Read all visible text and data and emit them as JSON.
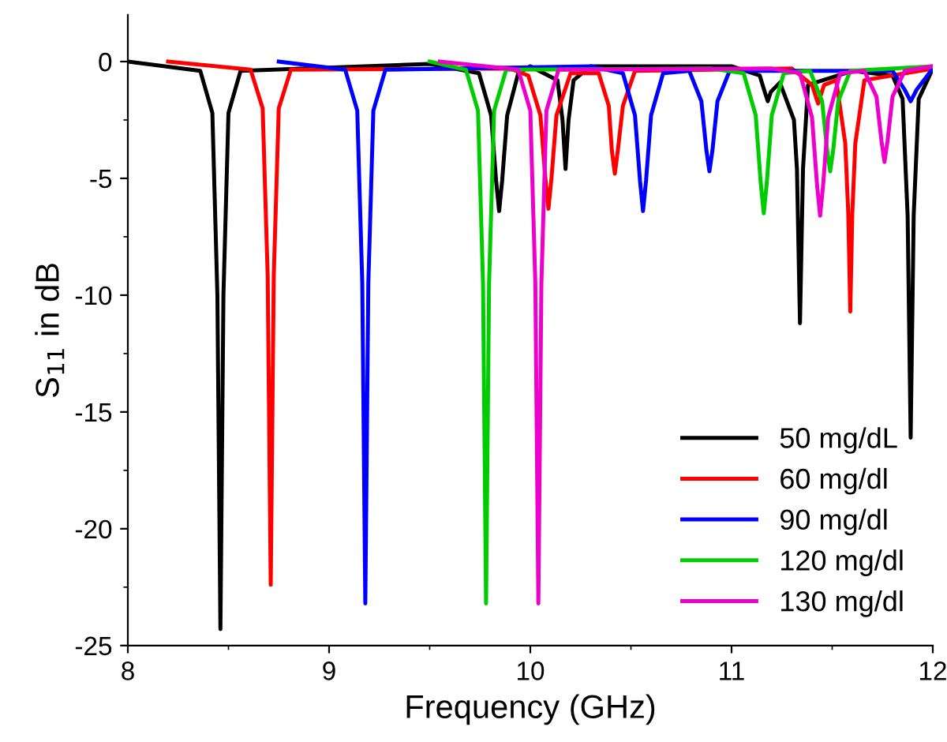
{
  "chart_data": {
    "type": "line",
    "xlabel": "Frequency (GHz)",
    "ylabel": "S$_{11}$ in dB",
    "xlim": [
      8,
      12
    ],
    "xticks": [
      8,
      9,
      10,
      11,
      12
    ],
    "ylim": [
      -25,
      2
    ],
    "yticks": [
      -25,
      -20,
      -15,
      -10,
      -5,
      0
    ],
    "grid": false,
    "legend": "bottom right",
    "marker": "none",
    "line_style": "solid",
    "series": [
      {
        "name": "50 mg/dL",
        "color": "#000000",
        "x": [
          8.0,
          8.36,
          8.42,
          8.445,
          8.46,
          8.475,
          8.5,
          8.56,
          9.5,
          9.745,
          9.805,
          9.83,
          9.845,
          9.86,
          9.885,
          9.94,
          10.0,
          10.135,
          10.16,
          10.175,
          10.19,
          10.215,
          10.3,
          11.0,
          11.14,
          11.165,
          11.18,
          11.195,
          11.24,
          11.31,
          11.325,
          11.34,
          11.355,
          11.38,
          11.6,
          11.8,
          11.85,
          11.875,
          11.89,
          11.905,
          11.93,
          12.0
        ],
        "values": [
          0,
          -0.4,
          -2.2,
          -10.0,
          -24.3,
          -10.0,
          -2.2,
          -0.4,
          -0.1,
          -0.5,
          -2.3,
          -5.1,
          -6.4,
          -5.1,
          -2.3,
          -0.5,
          -0.2,
          -0.8,
          -2.5,
          -4.6,
          -2.5,
          -0.8,
          -0.2,
          -0.2,
          -0.6,
          -1.3,
          -1.7,
          -1.3,
          -0.9,
          -2.5,
          -4.6,
          -11.2,
          -4.6,
          -1.0,
          -0.4,
          -0.6,
          -1.6,
          -6.6,
          -16.1,
          -6.6,
          -1.6,
          -0.3
        ]
      },
      {
        "name": "60 mg/dl",
        "color": "#ff0000",
        "x": [
          8.2,
          8.61,
          8.67,
          8.695,
          8.71,
          8.725,
          8.75,
          8.81,
          9.9,
          9.99,
          10.05,
          10.075,
          10.09,
          10.105,
          10.13,
          10.2,
          10.34,
          10.39,
          10.405,
          10.42,
          10.435,
          10.46,
          10.52,
          11.3,
          11.4,
          11.43,
          11.46,
          11.52,
          11.565,
          11.58,
          11.59,
          11.6,
          11.615,
          11.66,
          12.0
        ],
        "values": [
          0,
          -0.35,
          -2.0,
          -9.2,
          -22.4,
          -9.2,
          -2.0,
          -0.35,
          -0.3,
          -0.6,
          -2.3,
          -5.0,
          -6.3,
          -5.0,
          -2.3,
          -0.5,
          -0.5,
          -1.9,
          -3.8,
          -4.8,
          -3.8,
          -1.9,
          -0.4,
          -0.3,
          -1.0,
          -1.8,
          -1.0,
          -0.8,
          -3.5,
          -6.5,
          -10.7,
          -6.5,
          -3.5,
          -0.8,
          -0.3
        ]
      },
      {
        "name": "90 mg/dl",
        "color": "#0000ff",
        "x": [
          8.75,
          9.08,
          9.14,
          9.165,
          9.18,
          9.195,
          9.22,
          9.28,
          10.3,
          10.46,
          10.52,
          10.545,
          10.56,
          10.575,
          10.6,
          10.66,
          10.79,
          10.85,
          10.875,
          10.89,
          10.905,
          10.93,
          10.99,
          11.8,
          11.86,
          11.89,
          11.92,
          12.0
        ],
        "values": [
          0,
          -0.35,
          -2.1,
          -9.5,
          -23.2,
          -9.5,
          -2.1,
          -0.35,
          -0.2,
          -0.5,
          -2.3,
          -5.1,
          -6.4,
          -5.1,
          -2.3,
          -0.5,
          -0.4,
          -1.7,
          -3.8,
          -4.7,
          -3.8,
          -1.7,
          -0.4,
          -0.4,
          -1.2,
          -1.7,
          -1.2,
          -0.3
        ]
      },
      {
        "name": "120 mg/dl",
        "color": "#00cc00",
        "x": [
          9.5,
          9.68,
          9.74,
          9.765,
          9.78,
          9.795,
          9.82,
          9.88,
          10.9,
          11.06,
          11.12,
          11.145,
          11.16,
          11.175,
          11.2,
          11.26,
          11.39,
          11.45,
          11.475,
          11.49,
          11.505,
          11.53,
          11.59,
          12.0
        ],
        "values": [
          0,
          -0.35,
          -2.1,
          -9.5,
          -23.2,
          -9.5,
          -2.1,
          -0.35,
          -0.3,
          -0.5,
          -2.3,
          -5.2,
          -6.5,
          -5.2,
          -2.3,
          -0.5,
          -0.4,
          -1.7,
          -3.8,
          -4.7,
          -3.8,
          -1.7,
          -0.4,
          -0.2
        ]
      },
      {
        "name": "130 mg/dl",
        "color": "#ee00cc",
        "x": [
          9.55,
          9.94,
          10.0,
          10.025,
          10.04,
          10.055,
          10.08,
          10.14,
          11.2,
          11.34,
          11.4,
          11.425,
          11.44,
          11.455,
          11.48,
          11.54,
          11.66,
          11.72,
          11.745,
          11.76,
          11.775,
          11.8,
          11.86,
          12.0
        ],
        "values": [
          0,
          -0.35,
          -2.1,
          -9.5,
          -23.2,
          -9.5,
          -2.1,
          -0.35,
          -0.3,
          -0.5,
          -2.4,
          -5.3,
          -6.6,
          -5.3,
          -2.4,
          -0.5,
          -0.4,
          -1.5,
          -3.4,
          -4.3,
          -3.4,
          -1.5,
          -0.4,
          -0.2
        ]
      }
    ]
  }
}
